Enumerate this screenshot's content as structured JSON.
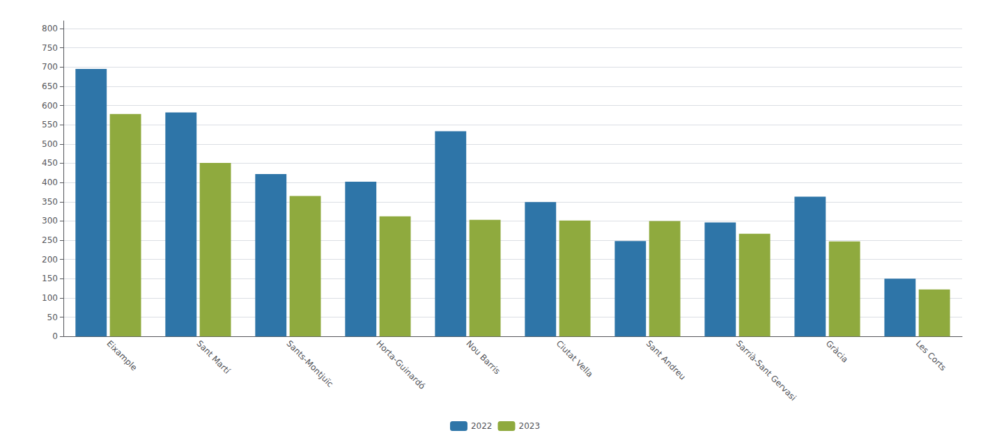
{
  "chart_data": {
    "type": "bar",
    "categories": [
      "Eixample",
      "Sant Martí",
      "Sants-Montjuïc",
      "Horta-Guinardó",
      "Nou Barris",
      "Ciutat Vella",
      "Sant Andreu",
      "Sarrià-Sant Gervasi",
      "Gràcia",
      "Les Corts"
    ],
    "series": [
      {
        "name": "2022",
        "color": "#2e75a8",
        "values": [
          695,
          582,
          422,
          402,
          533,
          349,
          248,
          296,
          363,
          150
        ]
      },
      {
        "name": "2023",
        "color": "#8faa3e",
        "values": [
          578,
          451,
          365,
          312,
          303,
          301,
          300,
          267,
          247,
          122
        ]
      }
    ],
    "ylim": [
      0,
      820
    ],
    "yticks": [
      0,
      50,
      100,
      150,
      200,
      250,
      300,
      350,
      400,
      450,
      500,
      550,
      600,
      650,
      700,
      750,
      800
    ],
    "grid": true,
    "legend": "bottom"
  }
}
